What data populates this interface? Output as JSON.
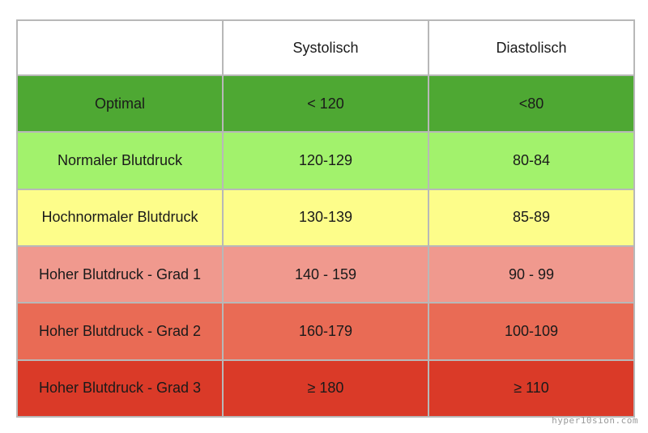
{
  "chart_data": {
    "type": "table",
    "columns": [
      "",
      "Systolisch",
      "Diastolisch"
    ],
    "rows": [
      {
        "label": "Optimal",
        "systolisch": "< 120",
        "diastolisch": "<80",
        "color": "#4ea833"
      },
      {
        "label": "Normaler Blutdruck",
        "systolisch": "120-129",
        "diastolisch": "80-84",
        "color": "#a2f26c"
      },
      {
        "label": "Hochnormaler Blutdruck",
        "systolisch": "130-139",
        "diastolisch": "85-89",
        "color": "#fdfd8a"
      },
      {
        "label": "Hoher Blutdruck - Grad 1",
        "systolisch": "140 - 159",
        "diastolisch": "90 - 99",
        "color": "#f0998e"
      },
      {
        "label": "Hoher Blutdruck - Grad 2",
        "systolisch": "160-179",
        "diastolisch": "100-109",
        "color": "#e96b55"
      },
      {
        "label": "Hoher Blutdruck - Grad 3",
        "systolisch": "≥ 180",
        "diastolisch": "≥ 110",
        "color": "#da3a28"
      }
    ]
  },
  "watermark": "hyper10sion.com"
}
